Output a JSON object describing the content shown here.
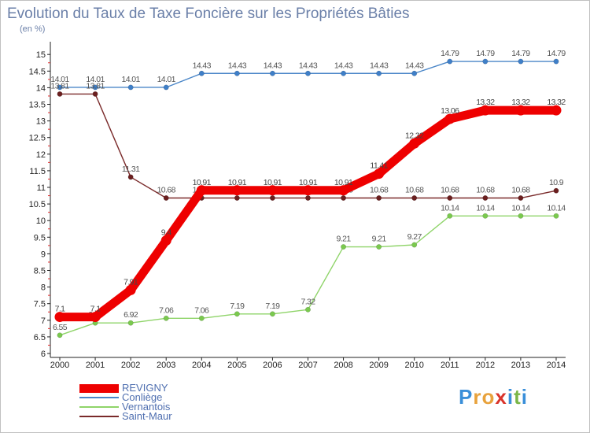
{
  "header": {
    "title": "Evolution du Taux de Taxe Foncière sur les Propriétés Bâties",
    "unit": "(en %)"
  },
  "brand": {
    "name": "Proxiti",
    "letter_colors": [
      "#3a8fd9",
      "#e8a23c",
      "#e8a23c",
      "#d9342b",
      "#3a8fd9",
      "#7ab648",
      "#3a8fd9"
    ]
  },
  "chart_data": {
    "type": "line",
    "title": "Evolution du Taux de Taxe Foncière sur les Propriétés Bâties",
    "ylabel": "(en %)",
    "xlabel": "",
    "x": [
      "2000",
      "2001",
      "2002",
      "2003",
      "2004",
      "2005",
      "2006",
      "2007",
      "2008",
      "2009",
      "2010",
      "2011",
      "2012",
      "2013",
      "2014"
    ],
    "ylim": [
      6,
      15
    ],
    "yticks": [
      "6",
      "6.5",
      "7",
      "7.5",
      "8",
      "8.5",
      "9",
      "9.5",
      "10",
      "10.5",
      "11",
      "11.5",
      "12",
      "12.5",
      "13",
      "13.5",
      "14",
      "14.5",
      "15"
    ],
    "grid": false,
    "legend_position": "bottom-left",
    "series": [
      {
        "name": "Conliège",
        "color": "#4a86c8",
        "marker": "#3f7fc8",
        "emphasis": false,
        "values": [
          14.01,
          14.01,
          14.01,
          14.01,
          14.43,
          14.43,
          14.43,
          14.43,
          14.43,
          14.43,
          14.43,
          14.79,
          14.79,
          14.79,
          14.79
        ],
        "labels": [
          "14.01",
          "14.01",
          "14.01",
          "14.01",
          "14.43",
          "14.43",
          "14.43",
          "14.43",
          "14.43",
          "14.43",
          "14.43",
          "14.79",
          "14.79",
          "14.79",
          "14.79"
        ]
      },
      {
        "name": "Vernantois",
        "color": "#8fd469",
        "marker": "#7ac94e",
        "emphasis": false,
        "values": [
          6.55,
          6.92,
          6.92,
          7.06,
          7.06,
          7.19,
          7.19,
          7.32,
          9.21,
          9.21,
          9.27,
          10.14,
          10.14,
          10.14,
          10.14
        ],
        "labels": [
          "6.55",
          "6.92",
          "6.92",
          "7.06",
          "7.06",
          "7.19",
          "7.19",
          "7.32",
          "9.21",
          "9.21",
          "9.27",
          "10.14",
          "10.14",
          "10.14",
          "10.14"
        ]
      },
      {
        "name": "Saint-Maur",
        "color": "#7a2a2a",
        "marker": "#6b1f1f",
        "emphasis": false,
        "values": [
          13.81,
          13.81,
          11.31,
          10.68,
          10.68,
          10.68,
          10.68,
          10.68,
          10.68,
          10.68,
          10.68,
          10.68,
          10.68,
          10.68,
          10.9
        ],
        "labels": [
          "13.81",
          "13.81",
          "11.31",
          "10.68",
          "10.68",
          "10.68",
          "10.68",
          "10.68",
          "10.68",
          "10.68",
          "10.68",
          "10.68",
          "10.68",
          "10.68",
          "10.9"
        ]
      },
      {
        "name": "REVIGNY",
        "color": "#ee0000",
        "marker": "#ee0000",
        "emphasis": true,
        "values": [
          7.1,
          7.1,
          7.91,
          9.4,
          10.91,
          10.91,
          10.91,
          10.91,
          10.91,
          11.41,
          12.32,
          13.06,
          13.32,
          13.32,
          13.32
        ],
        "labels": [
          "7.1",
          "7.1",
          "7.91",
          "9.4",
          "10.91",
          "10.91",
          "10.91",
          "10.91",
          "10.91",
          "11.41",
          "12.32",
          "13.06",
          "13.32",
          "13.32",
          "13.32"
        ]
      }
    ],
    "legend_order": [
      "REVIGNY",
      "Conliège",
      "Vernantois",
      "Saint-Maur"
    ]
  }
}
